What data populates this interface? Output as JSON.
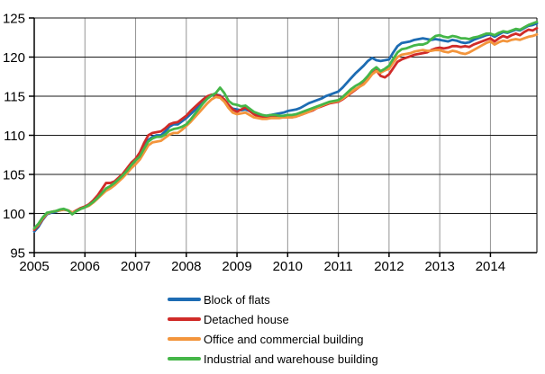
{
  "figure": {
    "background_color": "#ffffff"
  },
  "chart_data": {
    "type": "line",
    "title": "",
    "xlabel": "",
    "ylabel": "",
    "x_axis": {
      "tick_labels": [
        "2005",
        "2006",
        "2007",
        "2008",
        "2009",
        "2010",
        "2011",
        "2012",
        "2013",
        "2014"
      ],
      "points_per_year": 12,
      "start": "2005-01",
      "end": "2014-12"
    },
    "y_axis": {
      "ticks": [
        95,
        100,
        105,
        110,
        115,
        120,
        125
      ],
      "range": [
        95,
        125
      ]
    },
    "grid": {
      "horizontal": true,
      "vertical": true,
      "h_color": "#1a1a1a",
      "v_color": "#949494",
      "axis_color": "#000000"
    },
    "legend": {
      "position": "bottom"
    },
    "series": [
      {
        "name": "Block of flats",
        "color": "#1d6cb3",
        "values": [
          97.7,
          98.3,
          99.2,
          99.9,
          100.1,
          100.2,
          100.4,
          100.5,
          100.4,
          100.1,
          100.3,
          100.6,
          100.8,
          101.1,
          101.5,
          102.0,
          102.6,
          103.1,
          103.4,
          103.8,
          104.3,
          104.8,
          105.4,
          106.1,
          106.8,
          107.4,
          108.4,
          109.4,
          109.8,
          110.0,
          110.0,
          110.5,
          111.1,
          111.4,
          111.4,
          111.8,
          112.2,
          112.7,
          113.2,
          113.8,
          114.3,
          114.8,
          115.1,
          115.2,
          115.1,
          114.5,
          113.8,
          113.4,
          113.3,
          113.2,
          113.3,
          113.1,
          112.8,
          112.6,
          112.5,
          112.5,
          112.6,
          112.7,
          112.8,
          112.9,
          113.1,
          113.2,
          113.3,
          113.5,
          113.8,
          114.1,
          114.3,
          114.5,
          114.7,
          115.0,
          115.2,
          115.4,
          115.6,
          116.1,
          116.7,
          117.3,
          117.9,
          118.4,
          118.9,
          119.5,
          119.9,
          119.6,
          119.5,
          119.6,
          119.7,
          120.6,
          121.4,
          121.8,
          121.9,
          122.0,
          122.2,
          122.3,
          122.4,
          122.3,
          122.2,
          122.3,
          122.2,
          122.1,
          122.0,
          122.2,
          122.1,
          121.9,
          121.8,
          121.9,
          122.2,
          122.4,
          122.6,
          122.8,
          122.9,
          122.6,
          122.9,
          123.2,
          123.1,
          123.3,
          123.5,
          123.4,
          123.7,
          124.0,
          124.1,
          124.3
        ]
      },
      {
        "name": "Detached house",
        "color": "#d02b28",
        "values": [
          97.9,
          98.5,
          99.3,
          100.0,
          100.2,
          100.3,
          100.4,
          100.5,
          100.4,
          100.1,
          100.4,
          100.7,
          100.9,
          101.2,
          101.7,
          102.3,
          103.1,
          103.9,
          103.9,
          104.1,
          104.6,
          105.1,
          105.8,
          106.5,
          107.0,
          107.8,
          109.0,
          110.0,
          110.3,
          110.4,
          110.5,
          110.9,
          111.4,
          111.6,
          111.7,
          112.1,
          112.5,
          113.1,
          113.6,
          114.1,
          114.6,
          115.0,
          115.2,
          115.2,
          115.0,
          114.6,
          113.9,
          113.3,
          113.0,
          113.3,
          113.6,
          113.1,
          112.7,
          112.4,
          112.3,
          112.2,
          112.3,
          112.3,
          112.3,
          112.3,
          112.3,
          112.3,
          112.4,
          112.6,
          112.8,
          113.0,
          113.2,
          113.5,
          113.7,
          113.9,
          114.1,
          114.2,
          114.3,
          114.6,
          115.0,
          115.4,
          115.8,
          116.2,
          116.6,
          117.2,
          117.9,
          118.3,
          117.6,
          117.4,
          117.8,
          118.6,
          119.4,
          119.7,
          119.9,
          120.1,
          120.3,
          120.4,
          120.5,
          120.6,
          120.9,
          121.1,
          121.2,
          121.1,
          121.2,
          121.4,
          121.4,
          121.3,
          121.4,
          121.3,
          121.6,
          121.8,
          122.0,
          122.2,
          122.4,
          122.0,
          122.4,
          122.7,
          122.5,
          122.8,
          123.0,
          122.8,
          123.2,
          123.5,
          123.4,
          123.7
        ]
      },
      {
        "name": "Office and commercial building",
        "color": "#f3953c",
        "values": [
          98.1,
          98.6,
          99.4,
          100.0,
          100.2,
          100.3,
          100.4,
          100.5,
          100.4,
          100.1,
          100.3,
          100.6,
          100.8,
          101.0,
          101.4,
          101.9,
          102.4,
          102.9,
          103.2,
          103.6,
          104.1,
          104.6,
          105.2,
          105.8,
          106.3,
          106.9,
          107.8,
          108.7,
          109.1,
          109.2,
          109.3,
          109.7,
          110.1,
          110.3,
          110.3,
          110.7,
          111.2,
          111.7,
          112.3,
          112.9,
          113.5,
          114.1,
          114.6,
          114.9,
          114.8,
          114.3,
          113.5,
          112.9,
          112.7,
          112.8,
          112.9,
          112.6,
          112.3,
          112.2,
          112.1,
          112.1,
          112.2,
          112.2,
          112.2,
          112.3,
          112.3,
          112.3,
          112.4,
          112.6,
          112.8,
          113.0,
          113.3,
          113.5,
          113.8,
          114.0,
          114.2,
          114.3,
          114.4,
          114.7,
          115.1,
          115.5,
          115.9,
          116.2,
          116.5,
          117.1,
          117.8,
          118.2,
          118.0,
          118.3,
          118.5,
          119.3,
          120.0,
          120.3,
          120.4,
          120.5,
          120.7,
          120.8,
          120.9,
          120.8,
          120.8,
          120.9,
          120.9,
          120.7,
          120.6,
          120.8,
          120.7,
          120.5,
          120.4,
          120.6,
          120.9,
          121.2,
          121.5,
          121.8,
          122.0,
          121.6,
          121.9,
          122.1,
          122.0,
          122.2,
          122.3,
          122.2,
          122.4,
          122.6,
          122.7,
          122.9
        ]
      },
      {
        "name": "Industrial and warehouse building",
        "color": "#45b648",
        "values": [
          98.1,
          98.7,
          99.5,
          100.1,
          100.2,
          100.3,
          100.5,
          100.6,
          100.4,
          99.9,
          100.3,
          100.6,
          100.8,
          101.1,
          101.5,
          102.0,
          102.6,
          103.2,
          103.5,
          103.9,
          104.4,
          104.9,
          105.5,
          106.2,
          106.8,
          107.3,
          108.3,
          109.2,
          109.6,
          109.8,
          109.8,
          110.1,
          110.6,
          110.8,
          110.9,
          111.1,
          111.4,
          112.0,
          112.7,
          113.4,
          114.1,
          114.7,
          115.1,
          115.4,
          116.1,
          115.4,
          114.4,
          114.0,
          113.9,
          113.7,
          113.8,
          113.4,
          113.0,
          112.8,
          112.6,
          112.5,
          112.6,
          112.6,
          112.5,
          112.5,
          112.6,
          112.6,
          112.7,
          112.9,
          113.1,
          113.3,
          113.5,
          113.7,
          113.9,
          114.1,
          114.3,
          114.4,
          114.5,
          114.9,
          115.4,
          115.9,
          116.3,
          116.6,
          117.0,
          117.6,
          118.3,
          118.7,
          118.2,
          118.5,
          118.9,
          119.8,
          120.6,
          121.0,
          121.1,
          121.3,
          121.5,
          121.6,
          121.6,
          121.8,
          122.3,
          122.7,
          122.8,
          122.6,
          122.5,
          122.7,
          122.6,
          122.4,
          122.4,
          122.3,
          122.5,
          122.6,
          122.8,
          123.0,
          123.0,
          122.8,
          123.1,
          123.3,
          123.2,
          123.4,
          123.6,
          123.5,
          123.8,
          124.1,
          124.3,
          124.5
        ]
      }
    ]
  }
}
